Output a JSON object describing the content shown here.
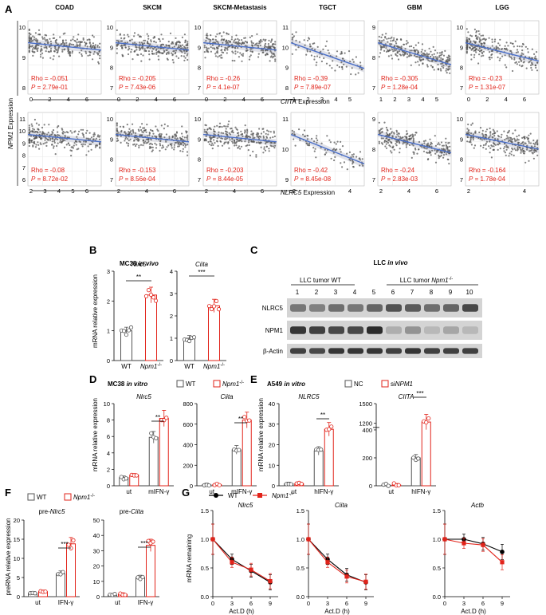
{
  "panel_letters": [
    "A",
    "B",
    "C",
    "D",
    "E",
    "F",
    "G"
  ],
  "panelA": {
    "y_axis_label": "NPM1 Expression",
    "row1_x_label": "CIITA Expression",
    "row2_x_label": "NLRC5 Expression",
    "row1": [
      {
        "title": "COAD",
        "rho": "Rho = -0.051",
        "p": "P = 2.79e-01",
        "xticks": [
          "0",
          "2",
          "4",
          "6"
        ],
        "yticks": [
          "10",
          "9",
          "8"
        ]
      },
      {
        "title": "SKCM",
        "rho": "Rho = -0.205",
        "p": "P = 7.43e-06",
        "xticks": [
          "0",
          "2",
          "4",
          "6"
        ],
        "yticks": [
          "10",
          "9",
          "8",
          "7"
        ]
      },
      {
        "title": "SKCM-Metastasis",
        "rho": "Rho = -0.26",
        "p": "P = 4.1e-07",
        "xticks": [
          "0",
          "2",
          "4",
          "6"
        ],
        "yticks": [
          "10",
          "9",
          "8",
          "7"
        ]
      },
      {
        "title": "TGCT",
        "rho": "Rho = -0.39",
        "p": "P = 7.89e-07",
        "xticks": [
          "1",
          "2",
          "3",
          "4",
          "5"
        ],
        "yticks": [
          "11",
          "10",
          "9",
          "8"
        ]
      },
      {
        "title": "GBM",
        "rho": "Rho = -0.305",
        "p": "P = 1.28e-04",
        "xticks": [
          "1",
          "2",
          "3",
          "4",
          "5"
        ],
        "yticks": [
          "9",
          "8",
          "7"
        ]
      },
      {
        "title": "LGG",
        "rho": "Rho = -0.23",
        "p": "P = 1.31e-07",
        "xticks": [
          "0",
          "2",
          "4",
          "6"
        ],
        "yticks": [
          "10",
          "9",
          "8",
          "7"
        ]
      }
    ],
    "row2": [
      {
        "rho": "Rho = -0.08",
        "p": "P = 8.72e-02",
        "xticks": [
          "2",
          "3",
          "4",
          "5",
          "6"
        ],
        "yticks": [
          "11",
          "10",
          "9",
          "8",
          "7",
          "6"
        ]
      },
      {
        "rho": "Rho = -0.153",
        "p": "P = 8.56e-04",
        "xticks": [
          "2",
          "4",
          "6"
        ],
        "yticks": [
          "10",
          "9",
          "8",
          "7"
        ]
      },
      {
        "rho": "Rho = -0.203",
        "p": "P = 8.44e-05",
        "xticks": [
          "2",
          "4",
          "6"
        ],
        "yticks": [
          "10",
          "9",
          "8",
          "7"
        ]
      },
      {
        "rho": "Rho = -0.42",
        "p": "P = 8.45e-08",
        "xticks": [
          "2",
          "4"
        ],
        "yticks": [
          "11",
          "10",
          "9"
        ]
      },
      {
        "rho": "Rho = -0.24",
        "p": "P = 2.83e-03",
        "xticks": [
          "2",
          "4",
          "6"
        ],
        "yticks": [
          "9",
          "8",
          "7"
        ]
      },
      {
        "rho": "Rho = -0.164",
        "p": "P = 1.78e-04",
        "xticks": [
          "2",
          "4"
        ],
        "yticks": [
          "10",
          "9",
          "8",
          "7"
        ]
      }
    ]
  },
  "panelB": {
    "title": "MC38 in vivo",
    "title_main": "MC38",
    "title_ital": "in vivo",
    "ylabel": "mRNA relative expression",
    "charts": [
      {
        "gene": "Nlrc5",
        "categories": [
          "WT",
          "Npm1-/-"
        ],
        "values": [
          1.0,
          2.2
        ],
        "sig": "**",
        "yticks": [
          "0",
          "1",
          "2",
          "3"
        ]
      },
      {
        "gene": "Ciita",
        "categories": [
          "WT",
          "Npm1-/-"
        ],
        "values": [
          1.0,
          2.45
        ],
        "sig": "***",
        "yticks": [
          "0",
          "1",
          "2",
          "3",
          "4"
        ]
      }
    ],
    "cat_wt": "WT",
    "cat_ko": "Npm1",
    "cat_ko_sup": "-/-"
  },
  "panelC": {
    "title_main": "LLC",
    "title_ital": "in vivo",
    "group_wt": "LLC tumor WT",
    "group_ko": "LLC tumor Npm1",
    "group_ko_sup": "-/-",
    "lanes": [
      "1",
      "2",
      "3",
      "4",
      "5",
      "6",
      "7",
      "8",
      "9",
      "10"
    ],
    "rows": [
      "NLRC5",
      "NPM1",
      "β-Actin"
    ]
  },
  "panelD": {
    "title_main": "MC38",
    "title_ital": "in vitro",
    "legend": [
      "WT",
      "Npm1-/-"
    ],
    "ylabel": "mRNA relative expression",
    "charts": [
      {
        "gene": "Nlrc5",
        "categories": [
          "ut",
          "mIFN-γ"
        ],
        "series": [
          {
            "name": "WT",
            "values": [
              1.0,
              5.9
            ]
          },
          {
            "name": "Npm1-/-",
            "values": [
              1.3,
              8.2
            ]
          }
        ],
        "sig": "**",
        "yticks": [
          "0",
          "2",
          "4",
          "6",
          "8",
          "10"
        ]
      },
      {
        "gene": "Ciita",
        "categories": [
          "ut",
          "mIFN-γ"
        ],
        "series": [
          {
            "name": "WT",
            "values": [
              10,
              350
            ]
          },
          {
            "name": "Npm1-/-",
            "values": [
              10,
              640
            ]
          }
        ],
        "sig": "**",
        "yticks": [
          "0",
          "200",
          "400",
          "600",
          "800"
        ]
      }
    ]
  },
  "panelE": {
    "title_main": "A549",
    "title_ital": "in vitro",
    "legend": [
      "NC",
      "siNPM1"
    ],
    "ylabel": "mRNA relative expression",
    "charts": [
      {
        "gene": "NLRC5",
        "categories": [
          "ut",
          "hIFN-γ"
        ],
        "series": [
          {
            "name": "NC",
            "values": [
              1.0,
              17.0
            ]
          },
          {
            "name": "siNPM1",
            "values": [
              1.0,
              27.5
            ]
          }
        ],
        "sig": "**",
        "yticks": [
          "0",
          "10",
          "20",
          "30",
          "40"
        ]
      },
      {
        "gene": "CIITA",
        "categories": [
          "ut",
          "hIFN-γ"
        ],
        "series": [
          {
            "name": "NC",
            "values": [
              5,
              200
            ]
          },
          {
            "name": "siNPM1",
            "values": [
              5,
              1220
            ]
          }
        ],
        "sig": "***",
        "yticks": [
          "0",
          "200",
          "400",
          "1200",
          "1500"
        ]
      }
    ]
  },
  "panelF": {
    "legend": [
      "WT",
      "Npm1-/-"
    ],
    "ylabel": "preRNA relative expression",
    "charts": [
      {
        "gene": "pre-Nlrc5",
        "categories": [
          "ut",
          "IFN-γ"
        ],
        "series": [
          {
            "name": "WT",
            "values": [
              0.9,
              6.0
            ]
          },
          {
            "name": "Npm1-/-",
            "values": [
              1.3,
              13.8
            ]
          }
        ],
        "sig": "***",
        "yticks": [
          "0",
          "5",
          "10",
          "15",
          "20"
        ]
      },
      {
        "gene": "pre-Ciita",
        "categories": [
          "ut",
          "IFN-γ"
        ],
        "series": [
          {
            "name": "WT",
            "values": [
              1.0,
              12.5
            ]
          },
          {
            "name": "Npm1-/-",
            "values": [
              1.5,
              33.5
            ]
          }
        ],
        "sig": "***",
        "yticks": [
          "0",
          "10",
          "20",
          "30",
          "40",
          "50"
        ]
      }
    ]
  },
  "panelG": {
    "legend": [
      "WT",
      "Npm1-/-"
    ],
    "ylabel": "mRNA remaining",
    "xlabel": "Act.D (h)",
    "xticks": [
      "0",
      "3",
      "6",
      "9"
    ],
    "yticks": [
      "0.0",
      "0.5",
      "1.0",
      "1.5"
    ],
    "charts": [
      {
        "gene": "Nlrc5",
        "x": [
          0,
          3,
          6,
          9
        ],
        "series": [
          {
            "name": "WT",
            "values": [
              1.0,
              0.65,
              0.45,
              0.25
            ]
          },
          {
            "name": "Npm1-/-",
            "values": [
              1.0,
              0.6,
              0.47,
              0.27
            ]
          }
        ]
      },
      {
        "gene": "Ciita",
        "x": [
          0,
          3,
          6,
          9
        ],
        "series": [
          {
            "name": "WT",
            "values": [
              1.0,
              0.65,
              0.38,
              0.25
            ]
          },
          {
            "name": "Npm1-/-",
            "values": [
              1.0,
              0.6,
              0.35,
              0.26
            ]
          }
        ]
      },
      {
        "gene": "Actb",
        "x": [
          0,
          3,
          6,
          9
        ],
        "series": [
          {
            "name": "WT",
            "values": [
              1.0,
              1.0,
              0.92,
              0.78
            ]
          },
          {
            "name": "Npm1-/-",
            "values": [
              1.0,
              0.93,
              0.9,
              0.6
            ]
          }
        ]
      }
    ]
  },
  "colors": {
    "red": "#e2231a",
    "blue": "#4a6fc9",
    "gray": "#555555"
  },
  "chart_data": [
    {
      "type": "bar",
      "title": "MC38 in vivo Nlrc5",
      "categories": [
        "WT",
        "Npm1-/-"
      ],
      "values": [
        1.0,
        2.2
      ],
      "ylabel": "mRNA relative expression",
      "ylim": [
        0,
        3
      ]
    },
    {
      "type": "bar",
      "title": "MC38 in vivo Ciita",
      "categories": [
        "WT",
        "Npm1-/-"
      ],
      "values": [
        1.0,
        2.45
      ],
      "ylabel": "mRNA relative expression",
      "ylim": [
        0,
        4
      ]
    },
    {
      "type": "bar",
      "title": "MC38 in vitro Nlrc5",
      "categories": [
        "ut",
        "mIFN-γ"
      ],
      "series": [
        {
          "name": "WT",
          "values": [
            1.0,
            5.9
          ]
        },
        {
          "name": "Npm1-/-",
          "values": [
            1.3,
            8.2
          ]
        }
      ],
      "ylim": [
        0,
        10
      ]
    },
    {
      "type": "bar",
      "title": "MC38 in vitro Ciita",
      "categories": [
        "ut",
        "mIFN-γ"
      ],
      "series": [
        {
          "name": "WT",
          "values": [
            10,
            350
          ]
        },
        {
          "name": "Npm1-/-",
          "values": [
            10,
            640
          ]
        }
      ],
      "ylim": [
        0,
        800
      ]
    },
    {
      "type": "bar",
      "title": "A549 in vitro NLRC5",
      "categories": [
        "ut",
        "hIFN-γ"
      ],
      "series": [
        {
          "name": "NC",
          "values": [
            1.0,
            17.0
          ]
        },
        {
          "name": "siNPM1",
          "values": [
            1.0,
            27.5
          ]
        }
      ],
      "ylim": [
        0,
        40
      ]
    },
    {
      "type": "bar",
      "title": "A549 in vitro CIITA",
      "categories": [
        "ut",
        "hIFN-γ"
      ],
      "series": [
        {
          "name": "NC",
          "values": [
            5,
            200
          ]
        },
        {
          "name": "siNPM1",
          "values": [
            5,
            1220
          ]
        }
      ],
      "ylim": [
        0,
        1500
      ]
    },
    {
      "type": "bar",
      "title": "pre-Nlrc5",
      "categories": [
        "ut",
        "IFN-γ"
      ],
      "series": [
        {
          "name": "WT",
          "values": [
            0.9,
            6.0
          ]
        },
        {
          "name": "Npm1-/-",
          "values": [
            1.3,
            13.8
          ]
        }
      ],
      "ylim": [
        0,
        20
      ]
    },
    {
      "type": "bar",
      "title": "pre-Ciita",
      "categories": [
        "ut",
        "IFN-γ"
      ],
      "series": [
        {
          "name": "WT",
          "values": [
            1.0,
            12.5
          ]
        },
        {
          "name": "Npm1-/-",
          "values": [
            1.5,
            33.5
          ]
        }
      ],
      "ylim": [
        0,
        50
      ]
    },
    {
      "type": "line",
      "title": "Nlrc5",
      "x": [
        0,
        3,
        6,
        9
      ],
      "series": [
        {
          "name": "WT",
          "values": [
            1.0,
            0.65,
            0.45,
            0.25
          ]
        },
        {
          "name": "Npm1-/-",
          "values": [
            1.0,
            0.6,
            0.47,
            0.27
          ]
        }
      ],
      "xlabel": "Act.D (h)",
      "ylabel": "mRNA remaining",
      "ylim": [
        0,
        1.5
      ]
    },
    {
      "type": "line",
      "title": "Ciita",
      "x": [
        0,
        3,
        6,
        9
      ],
      "series": [
        {
          "name": "WT",
          "values": [
            1.0,
            0.65,
            0.38,
            0.25
          ]
        },
        {
          "name": "Npm1-/-",
          "values": [
            1.0,
            0.6,
            0.35,
            0.26
          ]
        }
      ],
      "xlabel": "Act.D (h)",
      "ylabel": "mRNA remaining",
      "ylim": [
        0,
        1.5
      ]
    },
    {
      "type": "line",
      "title": "Actb",
      "x": [
        0,
        3,
        6,
        9
      ],
      "series": [
        {
          "name": "WT",
          "values": [
            1.0,
            1.0,
            0.92,
            0.78
          ]
        },
        {
          "name": "Npm1-/-",
          "values": [
            1.0,
            0.93,
            0.9,
            0.6
          ]
        }
      ],
      "xlabel": "Act.D (h)",
      "ylabel": "mRNA remaining",
      "ylim": [
        0,
        1.5
      ]
    }
  ]
}
